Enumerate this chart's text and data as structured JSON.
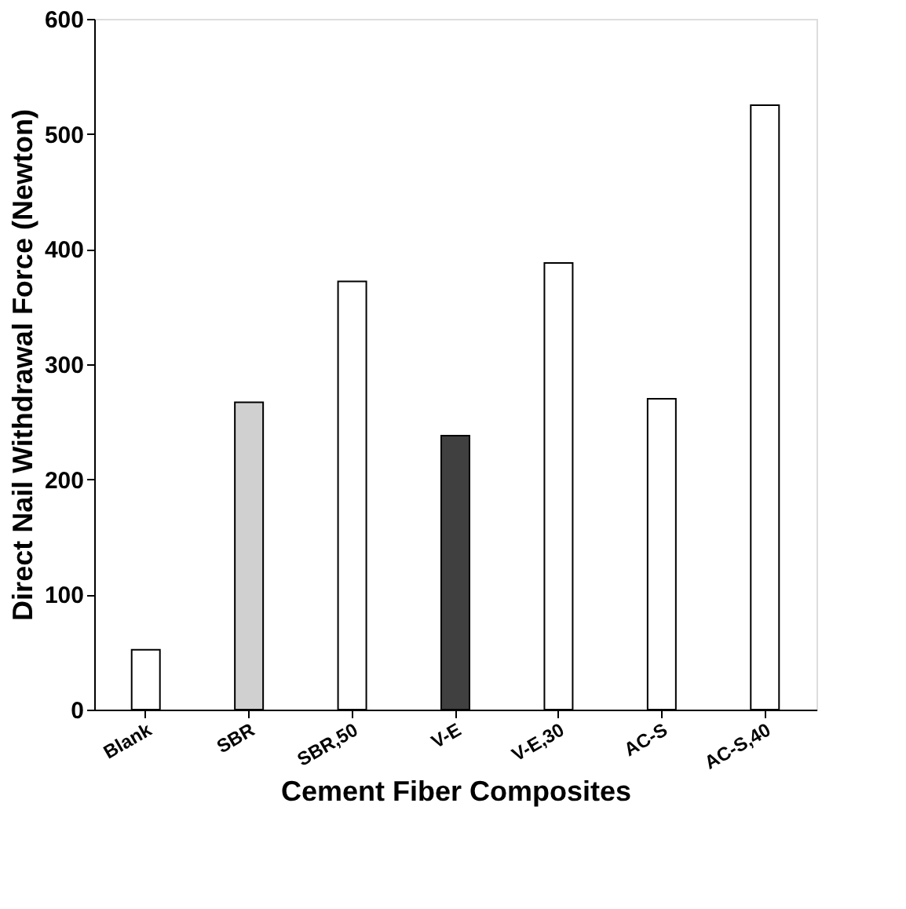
{
  "chart_data": {
    "type": "bar",
    "xlabel": "Cement Fiber Composites",
    "ylabel": "Direct Nail Withdrawal Force (Newton)",
    "categories": [
      "Blank",
      "SBR",
      "SBR,50",
      "V-E",
      "V-E,30",
      "AC-S",
      "AC-S,40"
    ],
    "values": [
      52,
      267,
      372,
      238,
      388,
      270,
      525
    ],
    "colors": [
      "#ffffff",
      "#d0d0d0",
      "#ffffff",
      "#404040",
      "#ffffff",
      "#ffffff",
      "#ffffff"
    ],
    "ylim": [
      0,
      600
    ],
    "yticks": [
      0,
      100,
      200,
      300,
      400,
      500,
      600
    ],
    "grid": false
  }
}
